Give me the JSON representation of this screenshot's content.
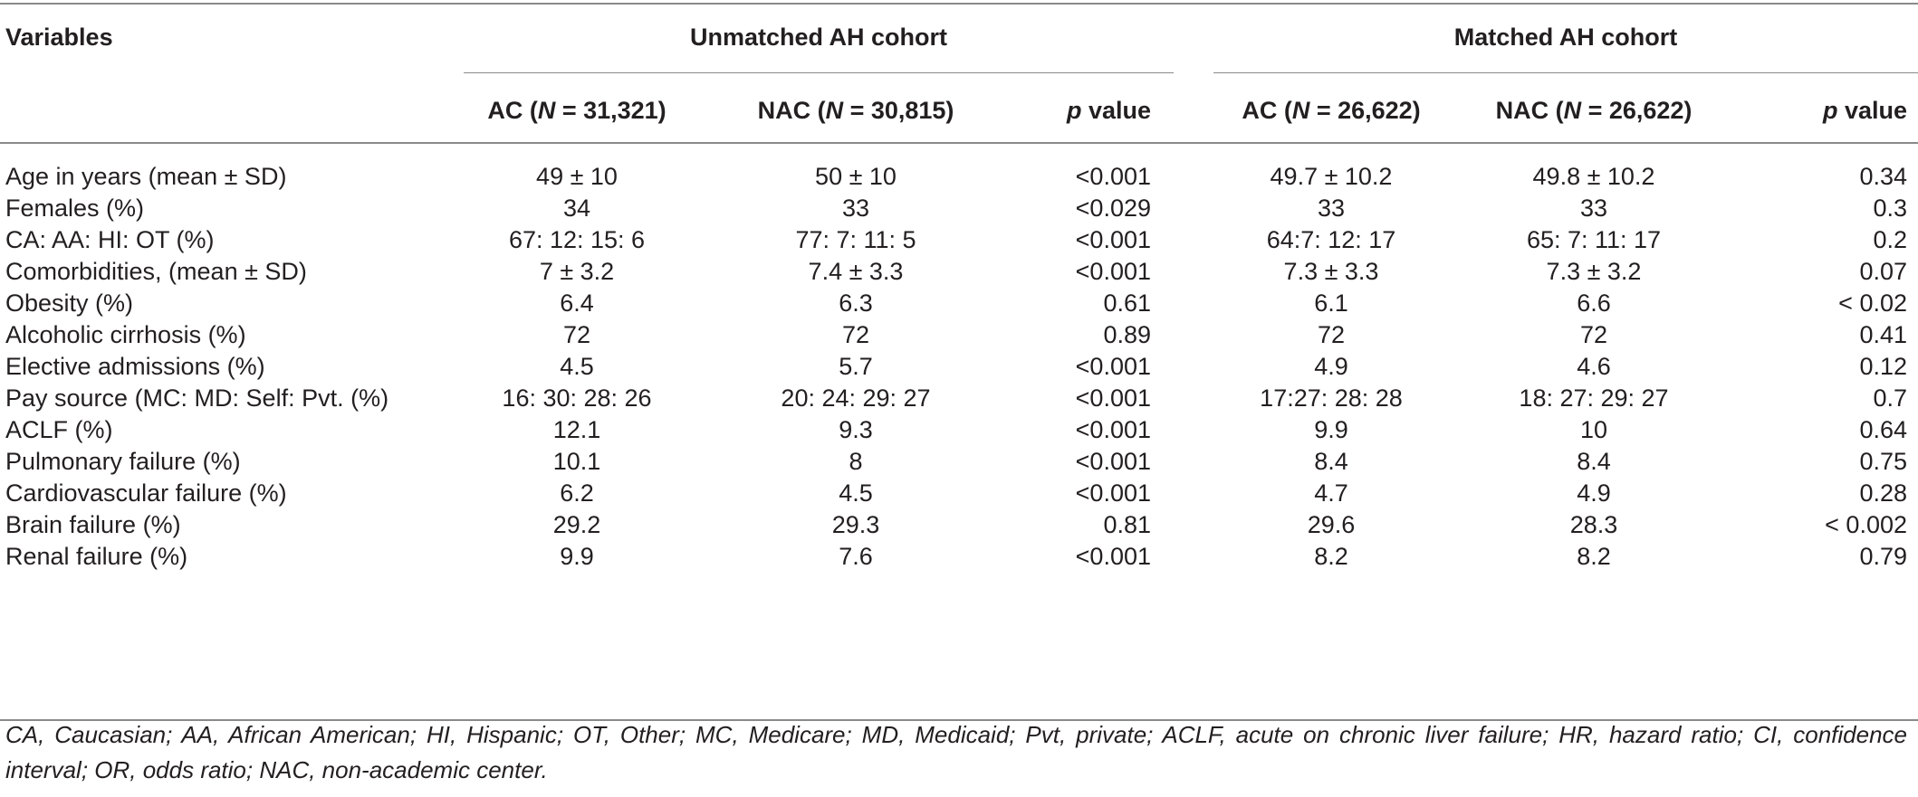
{
  "header": {
    "variables_label": "Variables",
    "groups": [
      {
        "label": "Unmatched AH cohort"
      },
      {
        "label": "Matched AH cohort"
      }
    ],
    "columns": [
      {
        "prefix": "AC (",
        "n_symbol": "N",
        "suffix": " = 31,321)"
      },
      {
        "prefix": "NAC (",
        "n_symbol": "N",
        "suffix": " = 30,815)"
      },
      {
        "p_symbol": "p",
        "suffix": " value"
      },
      {
        "prefix": "AC (",
        "n_symbol": "N",
        "suffix": " = 26,622)"
      },
      {
        "prefix": "NAC (",
        "n_symbol": "N",
        "suffix": " = 26,622)"
      },
      {
        "p_symbol": "p",
        "suffix": " value"
      }
    ]
  },
  "rows": [
    {
      "variable": "Age in years (mean ± SD)",
      "values": [
        "49 ± 10",
        "50 ± 10",
        "<0.001",
        "49.7 ± 10.2",
        "49.8 ± 10.2",
        "0.34"
      ]
    },
    {
      "variable": "Females (%)",
      "values": [
        "34",
        "33",
        "<0.029",
        "33",
        "33",
        "0.3"
      ]
    },
    {
      "variable": "CA: AA: HI: OT (%)",
      "values": [
        "67: 12: 15: 6",
        "77: 7: 11: 5",
        "<0.001",
        "64:7: 12: 17",
        "65: 7: 11: 17",
        "0.2"
      ]
    },
    {
      "variable": "Comorbidities, (mean ± SD)",
      "values": [
        "7 ± 3.2",
        "7.4 ± 3.3",
        "<0.001",
        "7.3 ± 3.3",
        "7.3 ± 3.2",
        "0.07"
      ]
    },
    {
      "variable": "Obesity (%)",
      "values": [
        "6.4",
        "6.3",
        "0.61",
        "6.1",
        "6.6",
        "< 0.02"
      ]
    },
    {
      "variable": "Alcoholic cirrhosis (%)",
      "values": [
        "72",
        "72",
        "0.89",
        "72",
        "72",
        "0.41"
      ]
    },
    {
      "variable": "Elective admissions (%)",
      "values": [
        "4.5",
        "5.7",
        "<0.001",
        "4.9",
        "4.6",
        "0.12"
      ]
    },
    {
      "variable": "Pay source (MC: MD: Self: Pvt. (%)",
      "values": [
        "16: 30: 28: 26",
        "20: 24: 29: 27",
        "<0.001",
        "17:27: 28: 28",
        "18: 27: 29: 27",
        "0.7"
      ]
    },
    {
      "variable": "ACLF (%)",
      "values": [
        "12.1",
        "9.3",
        "<0.001",
        "9.9",
        "10",
        "0.64"
      ]
    },
    {
      "variable": "Pulmonary failure (%)",
      "values": [
        "10.1",
        "8",
        "<0.001",
        "8.4",
        "8.4",
        "0.75"
      ]
    },
    {
      "variable": "Cardiovascular failure (%)",
      "values": [
        "6.2",
        "4.5",
        "<0.001",
        "4.7",
        "4.9",
        "0.28"
      ]
    },
    {
      "variable": "Brain failure (%)",
      "values": [
        "29.2",
        "29.3",
        "0.81",
        "29.6",
        "28.3",
        "< 0.002"
      ]
    },
    {
      "variable": "Renal failure (%)",
      "values": [
        "9.9",
        "7.6",
        "<0.001",
        "8.2",
        "8.2",
        "0.79"
      ]
    }
  ],
  "footnote": "CA, Caucasian; AA, African American; HI, Hispanic; OT, Other; MC, Medicare; MD, Medicaid; Pvt, private; ACLF, acute on chronic liver failure; HR, hazard ratio; CI, confidence interval; OR, odds ratio; NAC, non-academic center."
}
